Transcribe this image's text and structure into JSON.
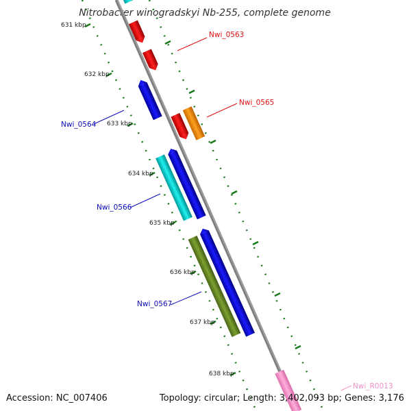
{
  "title": "Nitrobacter winogradskyi Nb-255, complete genome",
  "footer": {
    "accession": "Accession: NC_007406",
    "summary": "Topology: circular; Length: 3,402,093 bp; Genes: 3,176"
  },
  "ticks": [
    "631 kbp",
    "632 kbp",
    "633 kbp",
    "634 kbp",
    "635 kbp",
    "636 kbp",
    "637 kbp",
    "638 kbp"
  ],
  "genes": [
    {
      "label": "Nwi_0563",
      "color": "#e01010"
    },
    {
      "label": "Nwi_0565",
      "color": "#e01010"
    },
    {
      "label": "Nwi_0564",
      "color": "#0a0ab8"
    },
    {
      "label": "Nwi_0566",
      "color": "#0a0ab8"
    },
    {
      "label": "Nwi_0567",
      "color": "#0a0ab8"
    },
    {
      "label": "Nwi_R0013",
      "color": "#f090c8"
    }
  ],
  "colors": {
    "backbone": "#8a8a8a",
    "ticks": "#1a7a1a",
    "red_gene": "#ff0000",
    "blue_gene": "#0000ee",
    "cyan_gene": "#00cccc",
    "orange_gene": "#ff9000",
    "olive_gene": "#6b8e23",
    "pink_gene": "#ff99cc"
  }
}
